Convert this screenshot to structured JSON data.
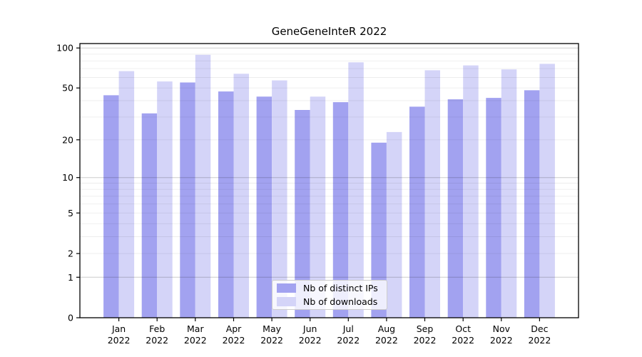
{
  "chart_data": {
    "type": "bar",
    "title": "GeneGeneInteR 2022",
    "categories": [
      "Jan",
      "Feb",
      "Mar",
      "Apr",
      "May",
      "Jun",
      "Jul",
      "Aug",
      "Sep",
      "Oct",
      "Nov",
      "Dec"
    ],
    "year_label": "2022",
    "series": [
      {
        "name": "Nb of distinct IPs",
        "color": "#a2a2f0",
        "values": [
          44,
          32,
          55,
          47,
          43,
          34,
          39,
          19,
          36,
          41,
          42,
          48
        ]
      },
      {
        "name": "Nb of downloads",
        "color": "#d4d4f8",
        "values": [
          67,
          56,
          89,
          64,
          57,
          43,
          78,
          23,
          68,
          74,
          69,
          76
        ]
      }
    ],
    "yscale": "log1p",
    "ylim": [
      0,
      108
    ],
    "yticks": [
      0,
      1,
      2,
      5,
      10,
      20,
      50,
      100
    ],
    "grid": {
      "major": [
        1,
        10,
        100
      ],
      "minor": [
        2,
        3,
        4,
        5,
        6,
        7,
        8,
        9,
        20,
        30,
        40,
        50,
        60,
        70,
        80,
        90
      ]
    },
    "legend_position": "lower center",
    "axis_color": "#000000",
    "major_grid_color": "rgba(0,0,0,0.20)",
    "minor_grid_color": "rgba(0,0,0,0.07)"
  }
}
